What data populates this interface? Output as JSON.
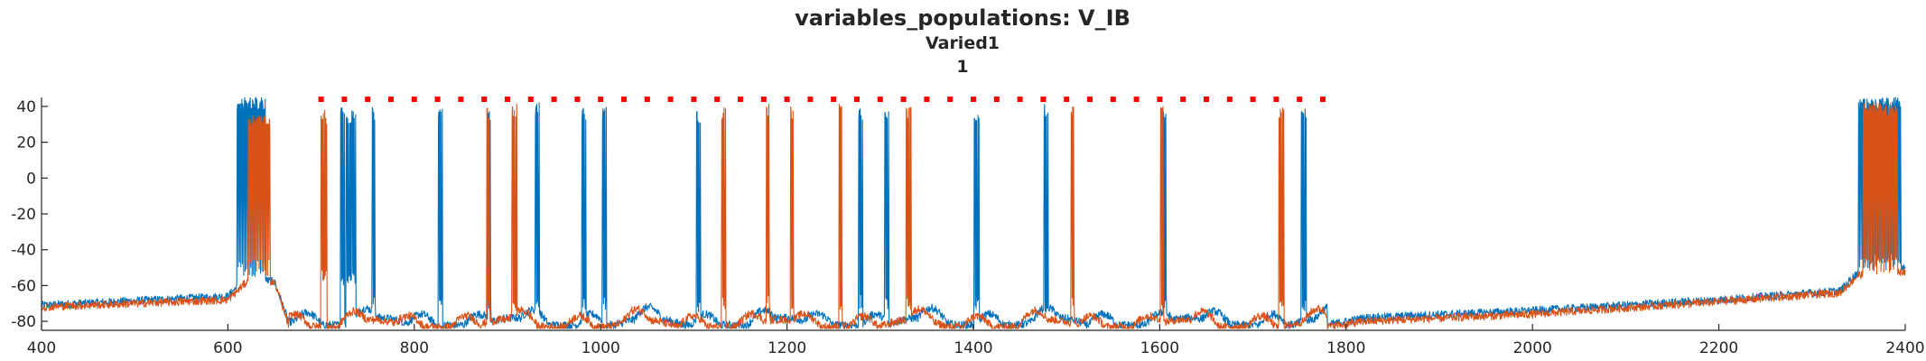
{
  "chart_data": {
    "type": "line",
    "title": "variables_populations: V_IB",
    "subtitle": "Varied1",
    "subtitle2": "1",
    "xlabel": "",
    "ylabel": "",
    "xlim": [
      400,
      2400
    ],
    "ylim": [
      -85,
      45
    ],
    "xticks": [
      400,
      600,
      800,
      1000,
      1200,
      1400,
      1600,
      1800,
      2000,
      2200,
      2400
    ],
    "yticks": [
      40,
      20,
      0,
      -20,
      -40,
      -60,
      -80
    ],
    "grid": false,
    "legend": "none",
    "colors": {
      "series1": "#0072BD",
      "series2": "#D95319",
      "markers": "#FF0000",
      "axis": "#262626"
    },
    "series": [
      {
        "color": "#0072BD",
        "baseline": [
          [
            400,
            -71
          ],
          [
            600,
            -66
          ],
          [
            620,
            -55
          ],
          [
            650,
            -58
          ],
          [
            665,
            -80
          ],
          [
            700,
            -82
          ],
          [
            1780,
            -82
          ],
          [
            1820,
            -78
          ],
          [
            2000,
            -74
          ],
          [
            2200,
            -68
          ],
          [
            2330,
            -63
          ],
          [
            2350,
            -52
          ],
          [
            2400,
            -50
          ]
        ],
        "bursts": [
          {
            "start": 610,
            "end": 640,
            "peak": 45,
            "trough": -55,
            "dense": true
          },
          {
            "start": 721,
            "end": 725,
            "peak": 40,
            "trough": -60
          },
          {
            "start": 727,
            "end": 737,
            "peak": 38,
            "trough": -60
          },
          {
            "start": 755,
            "end": 758,
            "peak": 40,
            "trough": -75
          },
          {
            "start": 826,
            "end": 830,
            "peak": 42,
            "trough": -75
          },
          {
            "start": 879,
            "end": 882,
            "peak": 40,
            "trough": -75
          },
          {
            "start": 930,
            "end": 934,
            "peak": 42,
            "trough": -75
          },
          {
            "start": 980,
            "end": 984,
            "peak": 40,
            "trough": -75
          },
          {
            "start": 1002,
            "end": 1006,
            "peak": 40,
            "trough": -75
          },
          {
            "start": 1103,
            "end": 1107,
            "peak": 38,
            "trough": -75
          },
          {
            "start": 1277,
            "end": 1281,
            "peak": 40,
            "trough": -75
          },
          {
            "start": 1305,
            "end": 1309,
            "peak": 40,
            "trough": -75
          },
          {
            "start": 1401,
            "end": 1406,
            "peak": 40,
            "trough": -75
          },
          {
            "start": 1476,
            "end": 1480,
            "peak": 42,
            "trough": -75
          },
          {
            "start": 1604,
            "end": 1607,
            "peak": 38,
            "trough": -75
          },
          {
            "start": 1752,
            "end": 1757,
            "peak": 40,
            "trough": -75
          },
          {
            "start": 2350,
            "end": 2395,
            "peak": 45,
            "trough": -52,
            "dense": true
          }
        ]
      },
      {
        "color": "#D95319",
        "baseline": [
          [
            400,
            -72
          ],
          [
            600,
            -68
          ],
          [
            620,
            -58
          ],
          [
            650,
            -58
          ],
          [
            665,
            -82
          ],
          [
            700,
            -83
          ],
          [
            1780,
            -83
          ],
          [
            1820,
            -80
          ],
          [
            2000,
            -76
          ],
          [
            2200,
            -69
          ],
          [
            2330,
            -64
          ],
          [
            2350,
            -54
          ],
          [
            2400,
            -52
          ]
        ],
        "bursts": [
          {
            "start": 622,
            "end": 645,
            "peak": 35,
            "trough": -55,
            "dense": true
          },
          {
            "start": 700,
            "end": 706,
            "peak": 38,
            "trough": -60
          },
          {
            "start": 878,
            "end": 881,
            "peak": 40,
            "trough": -75
          },
          {
            "start": 905,
            "end": 910,
            "peak": 42,
            "trough": -75
          },
          {
            "start": 1130,
            "end": 1134,
            "peak": 40,
            "trough": -75
          },
          {
            "start": 1178,
            "end": 1181,
            "peak": 42,
            "trough": -75
          },
          {
            "start": 1204,
            "end": 1207,
            "peak": 40,
            "trough": -75
          },
          {
            "start": 1256,
            "end": 1259,
            "peak": 42,
            "trough": -75
          },
          {
            "start": 1328,
            "end": 1333,
            "peak": 40,
            "trough": -75
          },
          {
            "start": 1505,
            "end": 1508,
            "peak": 40,
            "trough": -75
          },
          {
            "start": 1601,
            "end": 1604,
            "peak": 40,
            "trough": -75
          },
          {
            "start": 1728,
            "end": 1733,
            "peak": 40,
            "trough": -75
          },
          {
            "start": 2355,
            "end": 2392,
            "peak": 42,
            "trough": -54,
            "dense": true
          }
        ]
      }
    ],
    "markers": {
      "y": 44,
      "x": [
        700,
        725,
        750,
        775,
        800,
        825,
        850,
        875,
        900,
        925,
        950,
        975,
        1000,
        1025,
        1050,
        1075,
        1100,
        1125,
        1150,
        1175,
        1200,
        1225,
        1250,
        1275,
        1300,
        1325,
        1350,
        1375,
        1400,
        1425,
        1450,
        1475,
        1500,
        1525,
        1550,
        1575,
        1600,
        1625,
        1650,
        1675,
        1700,
        1725,
        1750,
        1775
      ]
    }
  }
}
